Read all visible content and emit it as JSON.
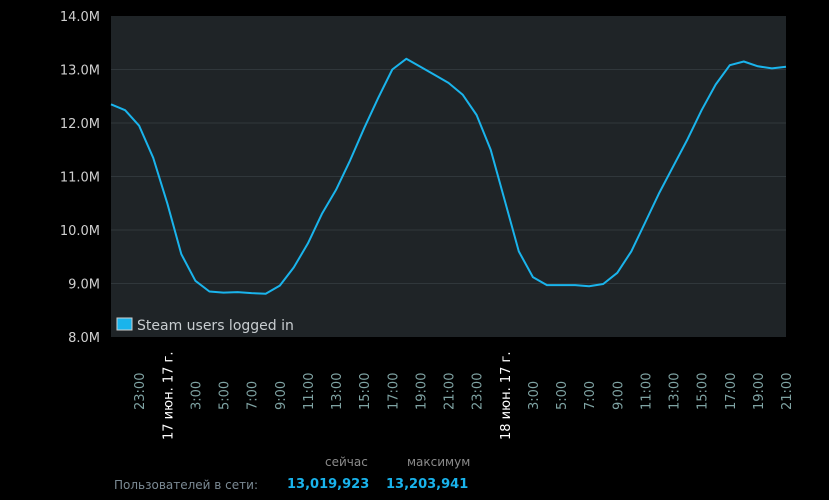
{
  "chart_data": {
    "type": "line",
    "title": "",
    "xlabel": "",
    "ylabel": "",
    "xlim": [
      "2017-06-16 21:00",
      "2017-06-18 21:00"
    ],
    "ylim": [
      8.0,
      14.0
    ],
    "yticks": [
      "8.0M",
      "9.0M",
      "10.0M",
      "11.0M",
      "12.0M",
      "13.0M",
      "14.0M"
    ],
    "xtick_labels": [
      "23:00",
      "17 июн. 17 г.",
      "3:00",
      "5:00",
      "7:00",
      "9:00",
      "11:00",
      "13:00",
      "15:00",
      "17:00",
      "19:00",
      "21:00",
      "23:00",
      "18 июн. 17 г.",
      "3:00",
      "5:00",
      "7:00",
      "9:00",
      "11:00",
      "13:00",
      "15:00",
      "17:00",
      "19:00",
      "21:00"
    ],
    "grid": true,
    "legend_position": "bottom-left",
    "series": [
      {
        "name": "Steam users logged in",
        "color": "#1ab4ec",
        "unit": "M",
        "values": [
          12.35,
          12.24,
          11.95,
          11.35,
          10.5,
          9.55,
          9.05,
          8.85,
          8.83,
          8.84,
          8.82,
          8.81,
          8.96,
          9.3,
          9.75,
          10.3,
          10.75,
          11.3,
          11.9,
          12.47,
          13.0,
          13.2,
          13.05,
          12.9,
          12.75,
          12.53,
          12.15,
          11.5,
          10.55,
          9.6,
          9.12,
          8.97,
          8.97,
          8.97,
          8.95,
          8.99,
          9.2,
          9.6,
          10.15,
          10.7,
          11.2,
          11.7,
          12.24,
          12.72,
          13.08,
          13.15,
          13.06,
          13.02,
          13.05
        ],
        "x_start": "2017-06-16 21:00",
        "x_step": "1h"
      }
    ]
  },
  "stats": {
    "label": "Пользователей в сети:",
    "now_header": "сейчас",
    "max_header": "максимум",
    "now_value": "13,019,923",
    "max_value": "13,203,941"
  }
}
